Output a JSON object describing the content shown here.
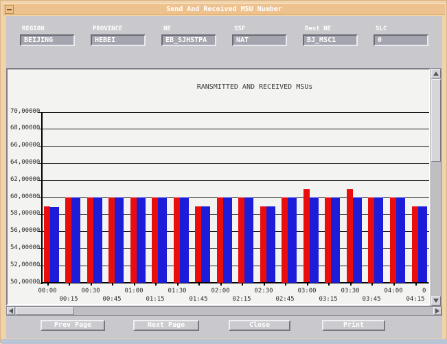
{
  "window": {
    "title": "Send And Received MSU Number",
    "menu_glyph": "minimize-dash"
  },
  "form": {
    "fields": [
      {
        "label": "REGION",
        "value": "BEIJING"
      },
      {
        "label": "PROVINCE",
        "value": "HEBEI"
      },
      {
        "label": "NE",
        "value": "EB_SJHSTPA"
      },
      {
        "label": "SSF",
        "value": "NAT"
      },
      {
        "label": "Dest NE",
        "value": "BJ_MSC1"
      },
      {
        "label": "SLC",
        "value": "0"
      }
    ]
  },
  "chart_data": {
    "type": "bar",
    "title": "RANSMITTED AND RECEIVED MSUs",
    "categories": [
      "00:00",
      "00:15",
      "00:30",
      "00:45",
      "01:00",
      "01:15",
      "01:30",
      "01:45",
      "02:00",
      "02:15",
      "02:30",
      "02:45",
      "03:00",
      "03:15",
      "03:30",
      "03:45",
      "04:00",
      "04:15"
    ],
    "clipped_next_label": "0",
    "series": [
      {
        "name": "Transmitted",
        "color": "#e90d0d",
        "values": [
          58.9,
          60,
          60,
          60,
          60,
          60,
          60,
          58.9,
          60,
          60,
          58.9,
          60,
          60.9,
          60,
          60.9,
          60,
          60,
          58.9
        ]
      },
      {
        "name": "Received",
        "color": "#1d1dd9",
        "values": [
          58.8,
          60,
          60,
          60,
          60,
          60,
          60,
          58.9,
          60,
          60,
          58.9,
          60,
          60,
          60,
          60,
          60,
          60,
          58.9
        ]
      }
    ],
    "ylim": [
      50,
      70
    ],
    "yticks": [
      {
        "value": 70,
        "label": "70,00000"
      },
      {
        "value": 68,
        "label": "68,00000"
      },
      {
        "value": 66,
        "label": "66,00000"
      },
      {
        "value": 64,
        "label": "64,00000"
      },
      {
        "value": 62,
        "label": "62,00000"
      },
      {
        "value": 60,
        "label": "60,00000"
      },
      {
        "value": 58,
        "label": "58,00000"
      },
      {
        "value": 56,
        "label": "56,00000"
      },
      {
        "value": 54,
        "label": "54,00000"
      },
      {
        "value": 52,
        "label": "52,00000"
      },
      {
        "value": 50,
        "label": "50,00000"
      }
    ],
    "grid": "horizontal",
    "legend": "none",
    "xlabel_layout": "staggered-two-rows"
  },
  "buttons": [
    {
      "label": "Prev Page"
    },
    {
      "label": "Next Page"
    },
    {
      "label": "Close"
    },
    {
      "label": "Print"
    }
  ]
}
